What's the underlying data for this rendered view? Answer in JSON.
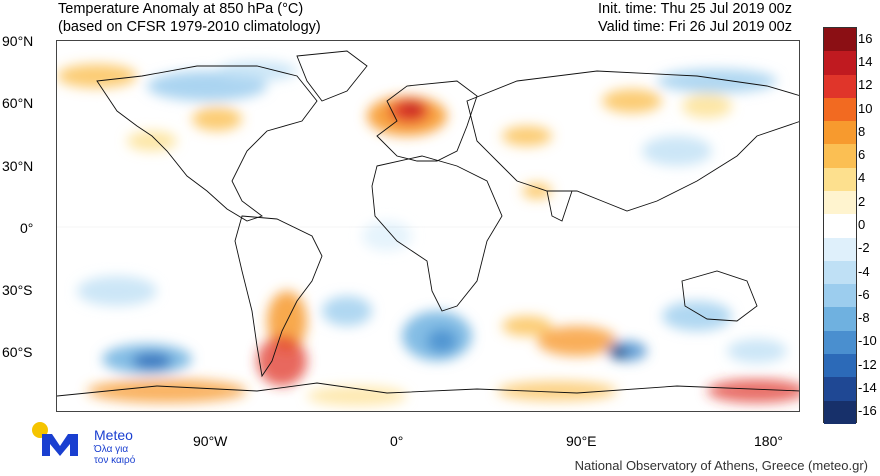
{
  "header": {
    "title_line1": "Temperature Anomaly at 850 hPa (°C)",
    "title_line2": "(based on CFSR 1979-2010 climatology)",
    "init_time": "Init. time: Thu 25 Jul 2019 00z",
    "valid_time": "Valid time: Fri 26 Jul 2019 00z"
  },
  "axes": {
    "lat_labels": [
      "90°N",
      "60°N",
      "30°N",
      "0°",
      "30°S",
      "60°S"
    ],
    "lon_labels": [
      "90°W",
      "0°",
      "90°E",
      "180°"
    ]
  },
  "colorbar": {
    "labels": [
      "16",
      "14",
      "12",
      "10",
      "8",
      "6",
      "4",
      "2",
      "0",
      "-2",
      "-4",
      "-6",
      "-8",
      "-10",
      "-12",
      "-14",
      "-16"
    ],
    "colors": [
      "#8b0f14",
      "#c01a20",
      "#e0352a",
      "#f26a21",
      "#f79a2e",
      "#fbbf53",
      "#fde08e",
      "#fff4cf",
      "#ffffff",
      "#dff0fb",
      "#bfe0f5",
      "#9ccdee",
      "#6fb1e0",
      "#4a8fcf",
      "#2c6ab8",
      "#1f4894",
      "#17306a"
    ]
  },
  "logo": {
    "name": "Meteo",
    "tagline_1": "Όλα για",
    "tagline_2": "τον καιρό",
    "brand_color": "#1a3fd0",
    "accent_color": "#f5c400"
  },
  "footer": {
    "credit": "National Observatory of Athens, Greece (meteo.gr)"
  }
}
